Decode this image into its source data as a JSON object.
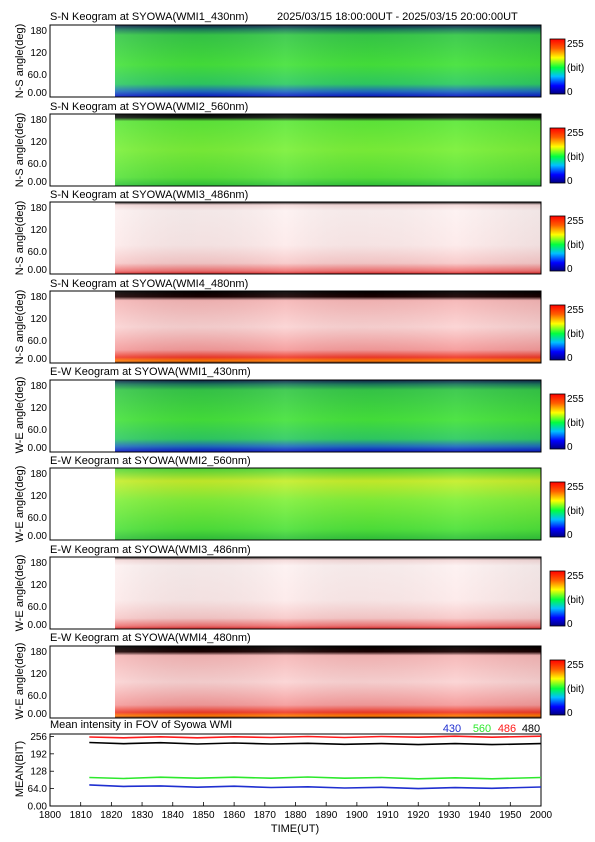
{
  "header": {
    "time_range": "2025/03/15 18:00:00UT - 2025/03/15 20:00:00UT"
  },
  "colors": {
    "frame": "#000000",
    "green": "#2de82d",
    "blue": "#1f2fd0",
    "red": "#ff1a1a",
    "gap": "#ffffff"
  },
  "chart_data": [
    {
      "type": "heatmap",
      "title": "S-N Keogram at SYOWA(WMI1_430nm)",
      "ylabel": "N-S angle(deg)",
      "ylim": [
        0,
        180
      ],
      "yticks": [
        "180",
        "120",
        "60.0",
        "0.00"
      ],
      "data_start_time": 1816,
      "style": "green-blue",
      "colorbar": {
        "max": "255",
        "unit": "(bit)",
        "min": "0"
      }
    },
    {
      "type": "heatmap",
      "title": "S-N Keogram at SYOWA(WMI2_560nm)",
      "ylabel": "N-S angle(deg)",
      "ylim": [
        0,
        180
      ],
      "yticks": [
        "180",
        "120",
        "60.0",
        "0.00"
      ],
      "data_start_time": 1816,
      "style": "green",
      "colorbar": {
        "max": "255",
        "unit": "(bit)",
        "min": "0"
      }
    },
    {
      "type": "heatmap",
      "title": "S-N Keogram at SYOWA(WMI3_486nm)",
      "ylabel": "N-S angle(deg)",
      "ylim": [
        0,
        180
      ],
      "yticks": [
        "180",
        "120",
        "60.0",
        "0.00"
      ],
      "data_start_time": 1816,
      "style": "light-red",
      "colorbar": {
        "max": "255",
        "unit": "(bit)",
        "min": "0"
      }
    },
    {
      "type": "heatmap",
      "title": "S-N Keogram at SYOWA(WMI4_480nm)",
      "ylabel": "N-S angle(deg)",
      "ylim": [
        0,
        180
      ],
      "yticks": [
        "180",
        "120",
        "60.0",
        "0.00"
      ],
      "data_start_time": 1816,
      "style": "red",
      "colorbar": {
        "max": "255",
        "unit": "(bit)",
        "min": "0"
      }
    },
    {
      "type": "heatmap",
      "title": "E-W Keogram at SYOWA(WMI1_430nm)",
      "ylabel": "W-E angle(deg)",
      "ylim": [
        0,
        180
      ],
      "yticks": [
        "180",
        "120",
        "60.0",
        "0.00"
      ],
      "data_start_time": 1816,
      "style": "green-blue",
      "colorbar": {
        "max": "255",
        "unit": "(bit)",
        "min": "0"
      }
    },
    {
      "type": "heatmap",
      "title": "E-W Keogram at SYOWA(WMI2_560nm)",
      "ylabel": "W-E angle(deg)",
      "ylim": [
        0,
        180
      ],
      "yticks": [
        "180",
        "120",
        "60.0",
        "0.00"
      ],
      "data_start_time": 1816,
      "style": "green-yellow",
      "colorbar": {
        "max": "255",
        "unit": "(bit)",
        "min": "0"
      }
    },
    {
      "type": "heatmap",
      "title": "E-W Keogram at SYOWA(WMI3_486nm)",
      "ylabel": "W-E angle(deg)",
      "ylim": [
        0,
        180
      ],
      "yticks": [
        "180",
        "120",
        "60.0",
        "0.00"
      ],
      "data_start_time": 1816,
      "style": "light-red",
      "colorbar": {
        "max": "255",
        "unit": "(bit)",
        "min": "0"
      }
    },
    {
      "type": "heatmap",
      "title": "E-W Keogram at SYOWA(WMI4_480nm)",
      "ylabel": "W-E angle(deg)",
      "ylim": [
        0,
        180
      ],
      "yticks": [
        "180",
        "120",
        "60.0",
        "0.00"
      ],
      "data_start_time": 1816,
      "style": "red",
      "colorbar": {
        "max": "255",
        "unit": "(bit)",
        "min": "0"
      }
    },
    {
      "type": "line",
      "title": "Mean intensity in FOV of Syowa WMI",
      "ylabel": "MEAN(BIT)",
      "xlabel": "TIME(UT)",
      "ylim": [
        0,
        265
      ],
      "yticks": [
        "256",
        "192",
        "128",
        "64.0",
        "0.00"
      ],
      "xlim": [
        1800,
        2000
      ],
      "xticks": [
        "1800",
        "1810",
        "1820",
        "1830",
        "1840",
        "1850",
        "1860",
        "1870",
        "1880",
        "1890",
        "1900",
        "1910",
        "1920",
        "1930",
        "1940",
        "1950",
        "2000"
      ],
      "x": [
        1816,
        1830,
        1845,
        1860,
        1875,
        1890,
        1905,
        1920,
        1935,
        1950,
        1965,
        1980,
        2000
      ],
      "series": [
        {
          "name": "430",
          "color": "#1f2fd0",
          "values": [
            76,
            74,
            72,
            71,
            71,
            70,
            69,
            68,
            67,
            66,
            66,
            67,
            68
          ]
        },
        {
          "name": "560",
          "color": "#2de82d",
          "values": [
            103,
            103,
            104,
            104,
            104,
            104,
            105,
            104,
            103,
            102,
            102,
            102,
            103
          ]
        },
        {
          "name": "486",
          "color": "#ff1a1a",
          "values": [
            252,
            253,
            253,
            253,
            253,
            254,
            254,
            254,
            254,
            255,
            255,
            255,
            255
          ]
        },
        {
          "name": "480",
          "color": "#000000",
          "values": [
            232,
            231,
            231,
            230,
            230,
            230,
            229,
            229,
            228,
            228,
            228,
            228,
            228
          ]
        }
      ]
    }
  ]
}
